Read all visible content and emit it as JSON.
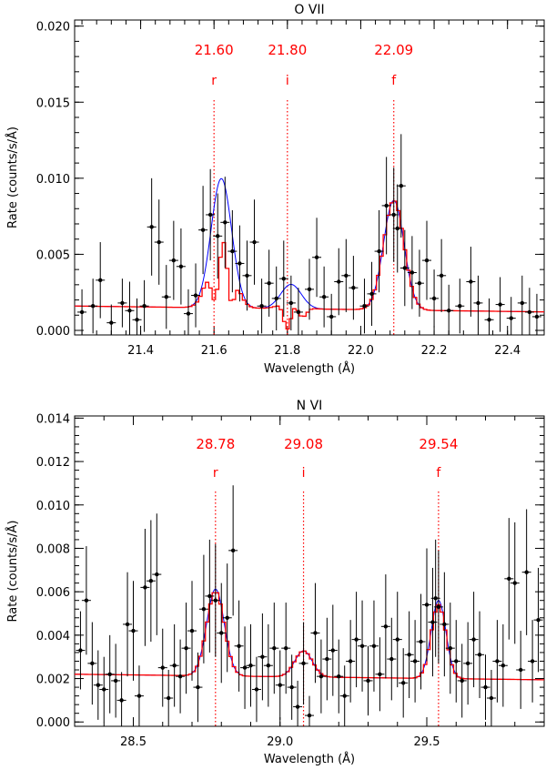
{
  "chart_data": [
    {
      "type": "scatter",
      "title": "O VII",
      "xlabel": "Wavelength (Å)",
      "ylabel": "Rate (counts/s/Å)",
      "xlim": [
        21.22,
        22.5
      ],
      "ylim": [
        -0.0003,
        0.0204
      ],
      "xticks": [
        21.4,
        21.6,
        21.8,
        22.0,
        22.2,
        22.4
      ],
      "xtick_labels": [
        "21.4",
        "21.6",
        "21.8",
        "22.0",
        "22.2",
        "22.4"
      ],
      "yticks": [
        0.0,
        0.005,
        0.01,
        0.015,
        0.02
      ],
      "ytick_labels": [
        "0.000",
        "0.005",
        "0.010",
        "0.015",
        "0.020"
      ],
      "lines": [
        {
          "letter": "r",
          "wavelength": 21.6,
          "label": "21.60"
        },
        {
          "letter": "i",
          "wavelength": 21.8,
          "label": "21.80"
        },
        {
          "letter": "f",
          "wavelength": 22.09,
          "label": "22.09"
        }
      ],
      "blue_model": {
        "baseline": 0.0016,
        "slope": -0.0003,
        "peaks": [
          [
            21.62,
            0.0085,
            0.028
          ],
          [
            21.81,
            0.0016,
            0.028
          ],
          [
            22.09,
            0.0072,
            0.028
          ]
        ]
      },
      "red_model": {
        "baseline": 0.0016,
        "slope": -0.0003,
        "peaks": [
          [
            21.62,
            0.006,
            0.028
          ],
          [
            21.81,
            0.0005,
            0.028
          ],
          [
            22.09,
            0.0072,
            0.028
          ]
        ],
        "dips": [
          [
            21.605,
            0.0045,
            0.012
          ],
          [
            21.645,
            0.0035,
            0.01
          ],
          [
            21.8,
            0.0018,
            0.01
          ],
          [
            21.84,
            0.0008,
            0.012
          ]
        ]
      },
      "points": [
        [
          21.24,
          0.0012,
          0.0015
        ],
        [
          21.27,
          0.0016,
          0.0018
        ],
        [
          21.29,
          0.0033,
          0.0025
        ],
        [
          21.32,
          0.0005,
          0.0012
        ],
        [
          21.35,
          0.0018,
          0.0016
        ],
        [
          21.37,
          0.0013,
          0.0019
        ],
        [
          21.39,
          0.0007,
          0.0014
        ],
        [
          21.41,
          0.0016,
          0.0017
        ],
        [
          21.43,
          0.0068,
          0.0032
        ],
        [
          21.45,
          0.0058,
          0.0028
        ],
        [
          21.47,
          0.0022,
          0.0021
        ],
        [
          21.49,
          0.0046,
          0.0026
        ],
        [
          21.51,
          0.0042,
          0.0025
        ],
        [
          21.53,
          0.0011,
          0.0016
        ],
        [
          21.55,
          0.0023,
          0.0021
        ],
        [
          21.57,
          0.0066,
          0.0029
        ],
        [
          21.59,
          0.0076,
          0.003
        ],
        [
          21.61,
          0.0062,
          0.0028
        ],
        [
          21.63,
          0.0071,
          0.003
        ],
        [
          21.65,
          0.0052,
          0.0027
        ],
        [
          21.67,
          0.0044,
          0.0025
        ],
        [
          21.69,
          0.0036,
          0.0023
        ],
        [
          21.71,
          0.0058,
          0.0028
        ],
        [
          21.73,
          0.0016,
          0.0018
        ],
        [
          21.75,
          0.0031,
          0.0022
        ],
        [
          21.77,
          0.0021,
          0.0021
        ],
        [
          21.79,
          0.0034,
          0.0025
        ],
        [
          21.81,
          0.0018,
          0.0018
        ],
        [
          21.83,
          0.0012,
          0.0016
        ],
        [
          21.86,
          0.0027,
          0.002
        ],
        [
          21.88,
          0.0048,
          0.0026
        ],
        [
          21.9,
          0.0022,
          0.002
        ],
        [
          21.92,
          0.0009,
          0.0015
        ],
        [
          21.94,
          0.0032,
          0.0022
        ],
        [
          21.96,
          0.0036,
          0.0024
        ],
        [
          21.98,
          0.0028,
          0.0021
        ],
        [
          22.01,
          0.0016,
          0.0018
        ],
        [
          22.03,
          0.0024,
          0.0021
        ],
        [
          22.05,
          0.0052,
          0.0027
        ],
        [
          22.07,
          0.0082,
          0.0032
        ],
        [
          22.09,
          0.0076,
          0.0031
        ],
        [
          22.1,
          0.0067,
          0.0029
        ],
        [
          22.11,
          0.0095,
          0.0034
        ],
        [
          22.12,
          0.0041,
          0.0025
        ],
        [
          22.14,
          0.0038,
          0.0024
        ],
        [
          22.16,
          0.0031,
          0.0022
        ],
        [
          22.18,
          0.0046,
          0.0026
        ],
        [
          22.2,
          0.0021,
          0.0019
        ],
        [
          22.22,
          0.0036,
          0.0024
        ],
        [
          22.24,
          0.0013,
          0.0017
        ],
        [
          22.27,
          0.0016,
          0.0018
        ],
        [
          22.3,
          0.0032,
          0.0023
        ],
        [
          22.32,
          0.0018,
          0.0018
        ],
        [
          22.35,
          0.0007,
          0.0014
        ],
        [
          22.38,
          0.0017,
          0.0018
        ],
        [
          22.41,
          0.0008,
          0.0014
        ],
        [
          22.44,
          0.0018,
          0.0018
        ],
        [
          22.46,
          0.0012,
          0.0016
        ],
        [
          22.48,
          0.0009,
          0.0015
        ]
      ]
    },
    {
      "type": "scatter",
      "title": "N VI",
      "xlabel": "Wavelength (Å)",
      "ylabel": "Rate (counts/s/Å)",
      "xlim": [
        28.3,
        29.9
      ],
      "ylim": [
        -0.0002,
        0.0141
      ],
      "xticks": [
        28.5,
        29.0,
        29.5
      ],
      "xtick_labels": [
        "28.5",
        "29.0",
        "29.5"
      ],
      "yticks": [
        0.0,
        0.002,
        0.004,
        0.006,
        0.008,
        0.01,
        0.012,
        0.014
      ],
      "ytick_labels": [
        "0.000",
        "0.002",
        "0.004",
        "0.006",
        "0.008",
        "0.010",
        "0.012",
        "0.014"
      ],
      "lines": [
        {
          "letter": "r",
          "wavelength": 28.78,
          "label": "28.78"
        },
        {
          "letter": "i",
          "wavelength": 29.08,
          "label": "29.08"
        },
        {
          "letter": "f",
          "wavelength": 29.54,
          "label": "29.54"
        }
      ],
      "blue_model": {
        "baseline": 0.0022,
        "slope": -0.00016,
        "peaks": [
          [
            28.78,
            0.004,
            0.03
          ],
          [
            29.08,
            0.0012,
            0.03
          ],
          [
            29.54,
            0.0036,
            0.025
          ]
        ]
      },
      "red_model": {
        "baseline": 0.0022,
        "slope": -0.00016,
        "peaks": [
          [
            28.78,
            0.0039,
            0.03
          ],
          [
            29.08,
            0.0012,
            0.03
          ],
          [
            29.54,
            0.0034,
            0.025
          ]
        ],
        "dips": []
      },
      "points": [
        [
          28.32,
          0.0033,
          0.0018
        ],
        [
          28.34,
          0.0056,
          0.0025
        ],
        [
          28.36,
          0.0027,
          0.0019
        ],
        [
          28.38,
          0.0017,
          0.0016
        ],
        [
          28.4,
          0.0015,
          0.0015
        ],
        [
          28.42,
          0.0022,
          0.0018
        ],
        [
          28.44,
          0.0019,
          0.0017
        ],
        [
          28.46,
          0.001,
          0.0013
        ],
        [
          28.48,
          0.0045,
          0.0024
        ],
        [
          28.5,
          0.0042,
          0.0023
        ],
        [
          28.52,
          0.0012,
          0.0014
        ],
        [
          28.54,
          0.0062,
          0.0027
        ],
        [
          28.56,
          0.0065,
          0.0028
        ],
        [
          28.58,
          0.0068,
          0.0028
        ],
        [
          28.6,
          0.0025,
          0.0018
        ],
        [
          28.62,
          0.0011,
          0.0013
        ],
        [
          28.64,
          0.0026,
          0.0019
        ],
        [
          28.66,
          0.0021,
          0.0017
        ],
        [
          28.68,
          0.0034,
          0.0021
        ],
        [
          28.7,
          0.0042,
          0.0023
        ],
        [
          28.72,
          0.0016,
          0.0016
        ],
        [
          28.74,
          0.0052,
          0.0025
        ],
        [
          28.76,
          0.0058,
          0.0026
        ],
        [
          28.78,
          0.0056,
          0.0026
        ],
        [
          28.8,
          0.0041,
          0.0023
        ],
        [
          28.82,
          0.0048,
          0.0025
        ],
        [
          28.84,
          0.0079,
          0.003
        ],
        [
          28.86,
          0.0035,
          0.0021
        ],
        [
          28.88,
          0.0025,
          0.0019
        ],
        [
          28.9,
          0.0026,
          0.0019
        ],
        [
          28.92,
          0.0015,
          0.0015
        ],
        [
          28.94,
          0.003,
          0.002
        ],
        [
          28.96,
          0.0026,
          0.0019
        ],
        [
          28.98,
          0.0034,
          0.0021
        ],
        [
          29.0,
          0.0017,
          0.0016
        ],
        [
          29.02,
          0.0034,
          0.0021
        ],
        [
          29.04,
          0.0016,
          0.0015
        ],
        [
          29.06,
          0.0007,
          0.0012
        ],
        [
          29.08,
          0.0027,
          0.0019
        ],
        [
          29.1,
          0.0003,
          0.0009
        ],
        [
          29.12,
          0.0041,
          0.0023
        ],
        [
          29.14,
          0.0021,
          0.0017
        ],
        [
          29.16,
          0.0029,
          0.0019
        ],
        [
          29.18,
          0.0033,
          0.0021
        ],
        [
          29.2,
          0.0021,
          0.0017
        ],
        [
          29.22,
          0.0012,
          0.0014
        ],
        [
          29.24,
          0.0028,
          0.0019
        ],
        [
          29.26,
          0.0038,
          0.0022
        ],
        [
          29.28,
          0.0035,
          0.0021
        ],
        [
          29.3,
          0.0019,
          0.0016
        ],
        [
          29.32,
          0.0035,
          0.0021
        ],
        [
          29.34,
          0.0022,
          0.0017
        ],
        [
          29.36,
          0.0044,
          0.0024
        ],
        [
          29.38,
          0.0029,
          0.0019
        ],
        [
          29.4,
          0.0038,
          0.0022
        ],
        [
          29.42,
          0.0018,
          0.0016
        ],
        [
          29.44,
          0.0031,
          0.002
        ],
        [
          29.46,
          0.0028,
          0.0019
        ],
        [
          29.48,
          0.0037,
          0.0022
        ],
        [
          29.5,
          0.0054,
          0.0026
        ],
        [
          29.52,
          0.0046,
          0.0025
        ],
        [
          29.53,
          0.0057,
          0.0027
        ],
        [
          29.54,
          0.0053,
          0.0026
        ],
        [
          29.56,
          0.0045,
          0.0024
        ],
        [
          29.58,
          0.0034,
          0.0021
        ],
        [
          29.6,
          0.0028,
          0.0019
        ],
        [
          29.62,
          0.0019,
          0.0017
        ],
        [
          29.64,
          0.0027,
          0.0019
        ],
        [
          29.66,
          0.0038,
          0.0022
        ],
        [
          29.68,
          0.0031,
          0.002
        ],
        [
          29.7,
          0.0016,
          0.0015
        ],
        [
          29.72,
          0.0011,
          0.0013
        ],
        [
          29.74,
          0.0028,
          0.0019
        ],
        [
          29.76,
          0.0026,
          0.0019
        ],
        [
          29.78,
          0.0066,
          0.0028
        ],
        [
          29.8,
          0.0064,
          0.0028
        ],
        [
          29.82,
          0.0024,
          0.0018
        ],
        [
          29.84,
          0.0069,
          0.0029
        ],
        [
          29.86,
          0.0028,
          0.0019
        ],
        [
          29.88,
          0.0047,
          0.0024
        ]
      ]
    }
  ],
  "colors": {
    "data": "#000000",
    "blue_model": "#0000ff",
    "red_model": "#ff0000",
    "annotation": "#ff0000",
    "axis": "#000000"
  }
}
